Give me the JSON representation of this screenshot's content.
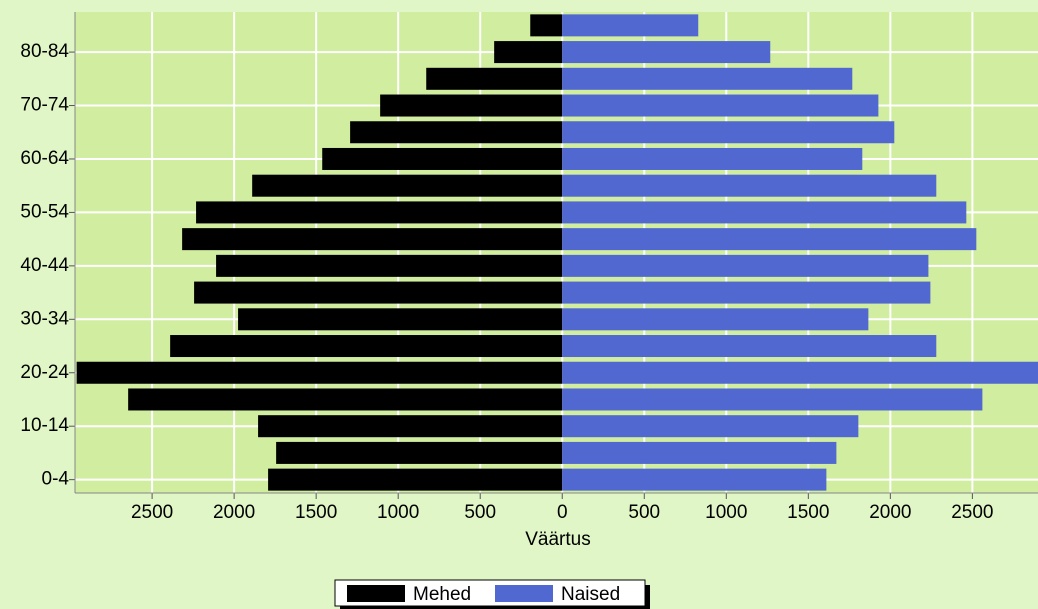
{
  "chart_data": {
    "type": "pyramid",
    "xlabel": "Väärtus",
    "categories": [
      "0-4",
      null,
      "10-14",
      null,
      "20-24",
      null,
      "30-34",
      null,
      "40-44",
      null,
      "50-54",
      null,
      "60-64",
      null,
      "70-74",
      null,
      "80-84",
      null
    ],
    "series": [
      {
        "name": "Mehed",
        "color": "#000000",
        "values": [
          -1793,
          -1744,
          -1854,
          -2646,
          -2960,
          -2390,
          -1976,
          -2244,
          -2110,
          -2317,
          -2232,
          -1890,
          -1463,
          -1293,
          -1110,
          -829,
          -415,
          -195
        ]
      },
      {
        "name": "Naised",
        "color": "#5068d0",
        "values": [
          1610,
          1671,
          1805,
          2561,
          2900,
          2280,
          1866,
          2244,
          2232,
          2524,
          2463,
          2280,
          1829,
          2024,
          1927,
          1768,
          1268,
          829
        ]
      }
    ],
    "xlim": [
      -2970,
      2900
    ],
    "xticks": [
      {
        "value": -2500,
        "label": "2500"
      },
      {
        "value": -2000,
        "label": "2000"
      },
      {
        "value": -1500,
        "label": "1500"
      },
      {
        "value": -1000,
        "label": "1000"
      },
      {
        "value": -500,
        "label": "500"
      },
      0,
      500,
      1000,
      1500,
      2000,
      2500
    ],
    "grid": true
  }
}
